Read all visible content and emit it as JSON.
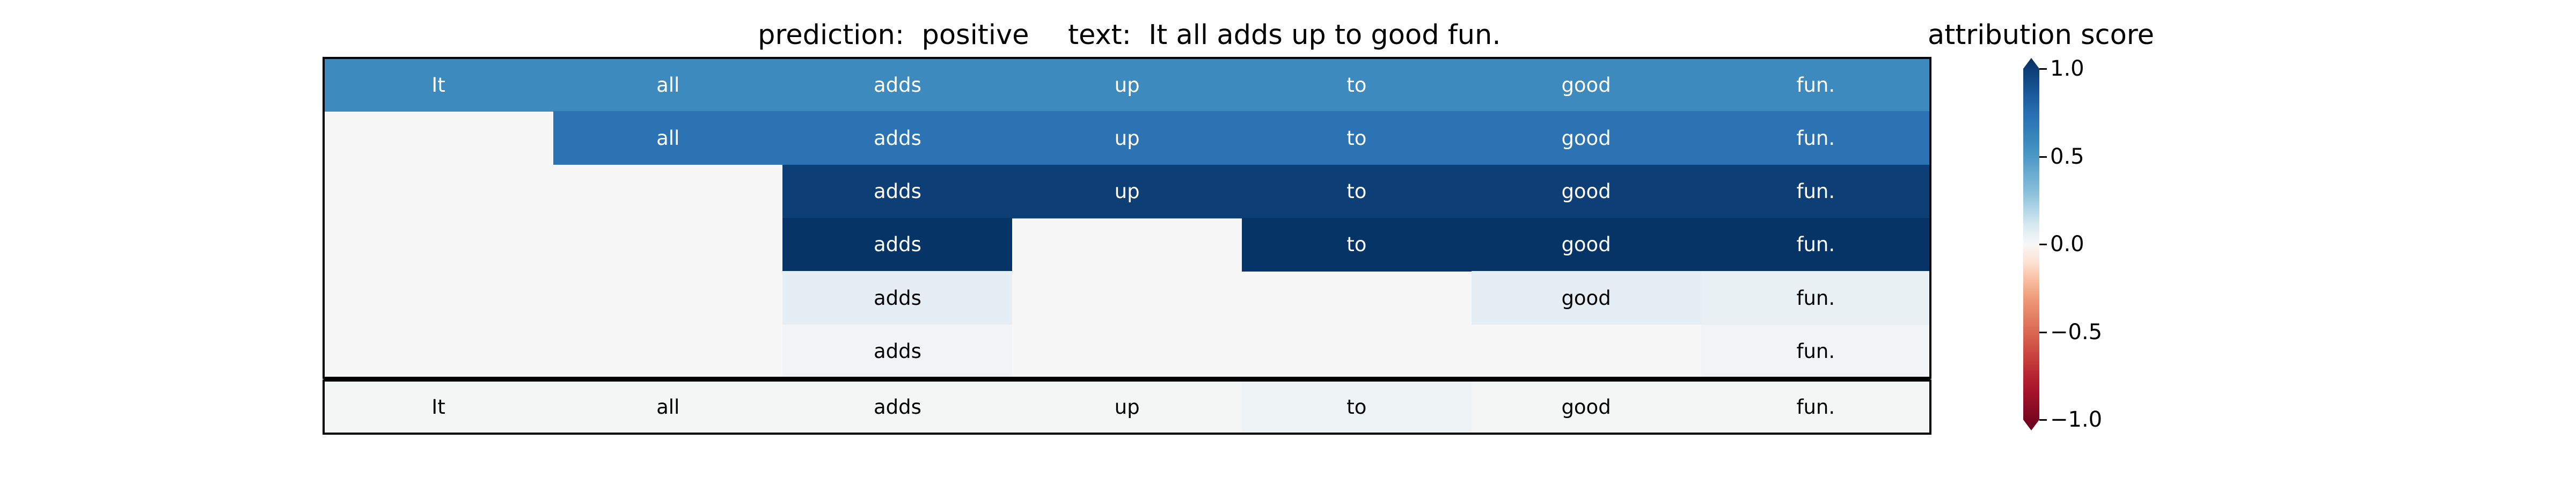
{
  "title": {
    "prediction": "prediction:  positive",
    "text": "text:  It all adds up to good fun."
  },
  "colorbar": {
    "title": "attribution score",
    "ticks": [
      1.0,
      0.5,
      0.0,
      -0.5,
      -1.0
    ],
    "tick_labels": [
      "1.0",
      "0.5",
      "0.0",
      "−0.5",
      "−1.0"
    ],
    "range": [
      -1.0,
      1.0
    ],
    "colormap": "RdBu",
    "extend": "both"
  },
  "chart_data": {
    "type": "heatmap",
    "tokens": [
      "It",
      "all",
      "adds",
      "up",
      "to",
      "good",
      "fun."
    ],
    "rows": [
      {
        "start": 0,
        "end": 6,
        "labels": [
          "It",
          "all",
          "adds",
          "up",
          "to",
          "good",
          "fun."
        ],
        "values": [
          0.55,
          0.55,
          0.55,
          0.55,
          0.55,
          0.55,
          0.55
        ]
      },
      {
        "start": 1,
        "end": 6,
        "labels": [
          "all",
          "adds",
          "up",
          "to",
          "good",
          "fun."
        ],
        "values": [
          0.68,
          0.68,
          0.68,
          0.68,
          0.68,
          0.68
        ]
      },
      {
        "start": 2,
        "end": 6,
        "labels": [
          "adds",
          "up",
          "to",
          "good",
          "fun."
        ],
        "values": [
          0.93,
          0.93,
          0.93,
          0.93,
          0.93
        ]
      },
      {
        "start": 2,
        "end": 6,
        "labels": [
          "adds",
          "",
          "to",
          "good",
          "fun."
        ],
        "values": [
          0.98,
          0.0,
          0.98,
          0.98,
          0.98
        ]
      },
      {
        "start": 2,
        "end": 6,
        "labels": [
          "adds",
          "",
          "",
          "good",
          "fun."
        ],
        "values": [
          0.06,
          0.0,
          0.0,
          0.06,
          0.05
        ]
      },
      {
        "start": 2,
        "end": 6,
        "labels": [
          "adds",
          "",
          "",
          "",
          "fun."
        ],
        "values": [
          0.02,
          0.0,
          0.0,
          0.0,
          0.02
        ]
      }
    ],
    "token_row": {
      "labels": [
        "It",
        "all",
        "adds",
        "up",
        "to",
        "good",
        "fun."
      ],
      "values": [
        0.01,
        0.01,
        0.01,
        0.01,
        0.03,
        0.01,
        0.01
      ]
    }
  }
}
